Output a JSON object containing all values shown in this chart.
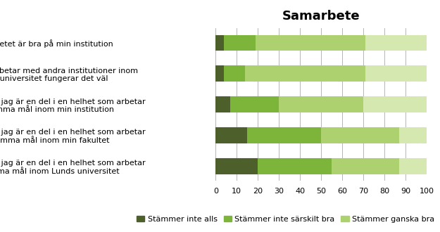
{
  "title": "Samarbete",
  "categories": [
    "Samarbetet är bra på min institution",
    "När jag samarbetar med andra institutioner inom\nLunds universitet fungerar det väl",
    "Jag upplever att jag är en del i en helhet som arbetar\nmot samma mål inom min institution",
    "Jag upplever att jag är en del i en helhet som arbetar\nmot samma mål inom min fakultet",
    "Jag upplever att jag är en del i en helhet som arbetar\nmot samma mål inom Lunds universitet"
  ],
  "series": {
    "Stämmer inte alls": [
      4,
      4,
      7,
      15,
      20
    ],
    "Stämmer inte särskilt bra": [
      15,
      10,
      23,
      35,
      35
    ],
    "Stämmer ganska bra": [
      52,
      57,
      40,
      37,
      32
    ],
    "Stämmer helt": [
      29,
      29,
      30,
      13,
      13
    ]
  },
  "colors": {
    "Stämmer inte alls": "#4d5f2b",
    "Stämmer inte särskilt bra": "#7db53b",
    "Stämmer ganska bra": "#acd16e",
    "Stämmer helt": "#d5e8b0"
  },
  "xlim": [
    0,
    100
  ],
  "xticks": [
    0,
    10,
    20,
    30,
    40,
    50,
    60,
    70,
    80,
    90,
    100
  ],
  "background_color": "#ffffff",
  "grid_color": "#aaaaaa",
  "title_fontsize": 13,
  "label_fontsize": 8,
  "legend_fontsize": 8,
  "bar_height": 0.52
}
